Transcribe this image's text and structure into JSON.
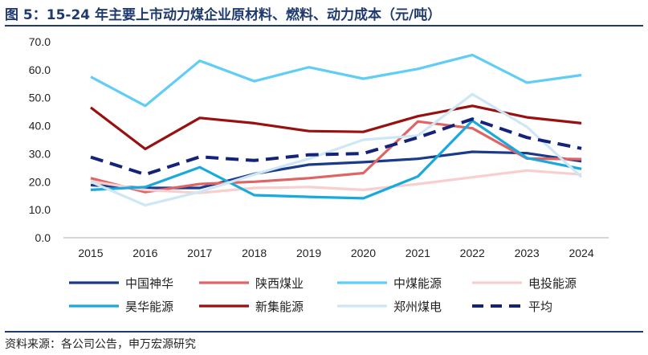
{
  "header": {
    "title": "图 5：15-24 年主要上市动力煤企业原材料、燃料、动力成本（元/吨）"
  },
  "footer": {
    "source": "资料来源：各公司公告，申万宏源研究"
  },
  "chart_data": {
    "type": "line",
    "title": "图 5：15-24 年主要上市动力煤企业原材料、燃料、动力成本（元/吨）",
    "xlabel": "",
    "ylabel": "",
    "x": [
      "2015",
      "2016",
      "2017",
      "2018",
      "2019",
      "2020",
      "2021",
      "2022",
      "2023",
      "2024"
    ],
    "ylim": [
      0,
      70
    ],
    "yticks": [
      "0.0",
      "10.0",
      "20.0",
      "30.0",
      "40.0",
      "50.0",
      "60.0",
      "70.0"
    ],
    "grid": false,
    "legend_position": "bottom",
    "series": [
      {
        "name": "中国神华",
        "color": "#1a3a8a",
        "dash": false,
        "values": [
          18.8,
          17.8,
          17.8,
          22.8,
          26.1,
          27.0,
          28.2,
          30.7,
          30.2,
          27.3
        ]
      },
      {
        "name": "陕西煤业",
        "color": "#e06464",
        "dash": false,
        "values": [
          21.3,
          16.3,
          19.2,
          20.0,
          21.3,
          23.1,
          41.5,
          39.1,
          28.3,
          28.1
        ]
      },
      {
        "name": "中煤能源",
        "color": "#5fcdf5",
        "dash": false,
        "values": [
          57.5,
          47.1,
          63.2,
          55.9,
          60.9,
          56.8,
          60.3,
          65.3,
          55.4,
          58.1
        ]
      },
      {
        "name": "电投能源",
        "color": "#f7cfcf",
        "dash": false,
        "values": [
          20.2,
          17.1,
          16.0,
          17.8,
          18.1,
          17.1,
          19.2,
          21.6,
          24.0,
          22.6
        ]
      },
      {
        "name": "昊华能源",
        "color": "#19a9dd",
        "dash": false,
        "values": [
          17.1,
          18.1,
          25.2,
          15.2,
          14.6,
          14.1,
          21.9,
          41.8,
          28.5,
          24.6
        ]
      },
      {
        "name": "新集能源",
        "color": "#9a1010",
        "dash": false,
        "values": [
          46.5,
          31.7,
          42.8,
          40.9,
          38.1,
          37.8,
          43.4,
          47.1,
          43.0,
          40.9
        ]
      },
      {
        "name": "郑州煤电",
        "color": "#cde7f4",
        "dash": false,
        "values": [
          20.0,
          11.6,
          16.4,
          22.6,
          28.2,
          35.0,
          36.5,
          51.3,
          39.6,
          21.7
        ]
      },
      {
        "name": "平均",
        "color": "#14237a",
        "dash": true,
        "values": [
          28.8,
          22.6,
          28.9,
          27.6,
          29.6,
          30.1,
          35.8,
          42.4,
          35.8,
          31.9
        ]
      }
    ]
  }
}
